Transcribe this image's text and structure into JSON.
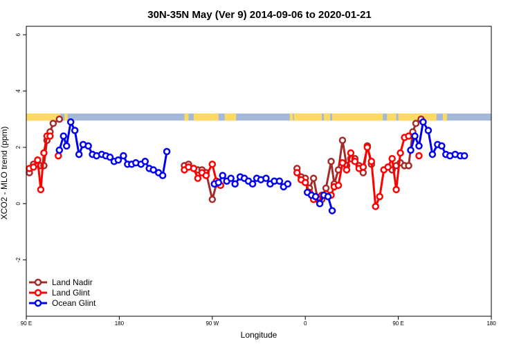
{
  "chart_data": {
    "type": "line",
    "title": "30N-35N May (Ver 9)   2014-09-06 to 2020-01-21",
    "xlabel": "Longitude",
    "ylabel": "XCO2 - MLO trend (ppm)",
    "xlim": [
      90,
      540
    ],
    "ylim": [
      -4,
      6.3
    ],
    "x_ticks": [
      {
        "value": 90,
        "label": "90 E"
      },
      {
        "value": 180,
        "label": "180"
      },
      {
        "value": 270,
        "label": "90 W"
      },
      {
        "value": 360,
        "label": "0"
      },
      {
        "value": 450,
        "label": "90 E"
      },
      {
        "value": 540,
        "label": "180"
      }
    ],
    "y_ticks": [
      {
        "value": -2,
        "label": "-2"
      },
      {
        "value": 0,
        "label": "0"
      },
      {
        "value": 2,
        "label": "2"
      },
      {
        "value": 4,
        "label": "4"
      },
      {
        "value": 6,
        "label": "6"
      }
    ],
    "grid": false,
    "legend_position": "bottom-left",
    "surface_band": {
      "y_range": [
        2.95,
        3.2
      ],
      "land_color": "#FFD966",
      "ocean_color": "#A4B8D8",
      "land_segments": [
        [
          90,
          123
        ],
        [
          127,
          130
        ],
        [
          243,
          247
        ],
        [
          252,
          276
        ],
        [
          282,
          293
        ],
        [
          345,
          348
        ],
        [
          349,
          376
        ],
        [
          378,
          384
        ],
        [
          386,
          435
        ],
        [
          439,
          448
        ],
        [
          450,
          487
        ],
        [
          493,
          497
        ]
      ]
    },
    "series": [
      {
        "name": "Land Nadir",
        "color": "#A52A2A",
        "segments": [
          [
            [
              93,
              1.1
            ],
            [
              97,
              1.4
            ],
            [
              101,
              1.4
            ],
            [
              104,
              1.35
            ],
            [
              107,
              1.35
            ],
            [
              110,
              2.25
            ],
            [
              113,
              2.55
            ],
            [
              116,
              2.85
            ],
            [
              122,
              3.0
            ]
          ],
          [
            [
              243,
              1.35
            ],
            [
              247,
              1.4
            ],
            [
              252,
              1.25
            ],
            [
              256,
              1.2
            ],
            [
              260,
              1.2
            ],
            [
              264,
              1.1
            ],
            [
              270,
              0.15
            ],
            [
              274,
              0.7
            ]
          ],
          [
            [
              352,
              1.25
            ],
            [
              356,
              0.95
            ],
            [
              360,
              0.9
            ],
            [
              364,
              0.55
            ],
            [
              368,
              0.9
            ],
            [
              372,
              0.15
            ],
            [
              376,
              0.15
            ],
            [
              380,
              0.55
            ],
            [
              385,
              1.5
            ],
            [
              388,
              0.7
            ],
            [
              392,
              1.2
            ],
            [
              396,
              2.25
            ],
            [
              400,
              1.35
            ],
            [
              404,
              1.6
            ],
            [
              408,
              1.6
            ],
            [
              412,
              1.35
            ],
            [
              416,
              1.1
            ],
            [
              420,
              2.05
            ],
            [
              424,
              1.4
            ]
          ],
          [
            [
              444,
              1.2
            ],
            [
              448,
              1.35
            ],
            [
              452,
              1.45
            ],
            [
              456,
              1.35
            ],
            [
              460,
              1.35
            ],
            [
              464,
              2.55
            ],
            [
              467,
              2.85
            ],
            [
              472,
              3.0
            ]
          ]
        ]
      },
      {
        "name": "Land Glint",
        "color": "#FF0000",
        "segments": [
          [
            [
              93,
              1.25
            ],
            [
              97,
              1.3
            ],
            [
              101,
              1.55
            ],
            [
              104,
              0.5
            ],
            [
              107,
              1.8
            ],
            [
              110,
              2.4
            ],
            [
              113,
              2.4
            ]
          ],
          [
            [
              121,
              1.7
            ]
          ],
          [
            [
              243,
              1.2
            ],
            [
              247,
              1.3
            ],
            [
              252,
              1.25
            ],
            [
              256,
              0.9
            ],
            [
              260,
              1.1
            ],
            [
              264,
              1.0
            ],
            [
              270,
              1.4
            ],
            [
              274,
              0.8
            ],
            [
              278,
              0.65
            ]
          ],
          [
            [
              352,
              1.1
            ],
            [
              356,
              0.85
            ],
            [
              360,
              0.75
            ],
            [
              364,
              0.4
            ],
            [
              368,
              0.15
            ],
            [
              372,
              0.2
            ],
            [
              376,
              0.3
            ],
            [
              380,
              0.35
            ],
            [
              385,
              0.3
            ],
            [
              388,
              0.6
            ],
            [
              392,
              0.65
            ],
            [
              396,
              1.45
            ],
            [
              400,
              1.2
            ],
            [
              404,
              1.8
            ],
            [
              408,
              1.5
            ],
            [
              412,
              1.25
            ],
            [
              416,
              1.3
            ],
            [
              420,
              2.0
            ],
            [
              424,
              1.5
            ],
            [
              428,
              -0.1
            ],
            [
              432,
              0.25
            ],
            [
              436,
              1.2
            ],
            [
              440,
              1.3
            ],
            [
              444,
              1.6
            ],
            [
              448,
              0.5
            ],
            [
              452,
              1.8
            ],
            [
              456,
              2.35
            ],
            [
              460,
              2.4
            ]
          ],
          [
            [
              470,
              1.7
            ]
          ]
        ]
      },
      {
        "name": "Ocean Glint",
        "color": "#0000EE",
        "segments": [
          [
            [
              122,
              1.9
            ],
            [
              126,
              2.4
            ],
            [
              129,
              2.05
            ],
            [
              133,
              2.9
            ],
            [
              137,
              2.6
            ],
            [
              141,
              1.75
            ],
            [
              145,
              2.1
            ],
            [
              150,
              2.05
            ],
            [
              154,
              1.75
            ],
            [
              158,
              1.7
            ],
            [
              163,
              1.75
            ],
            [
              167,
              1.7
            ],
            [
              171,
              1.65
            ],
            [
              175,
              1.5
            ],
            [
              179,
              1.55
            ],
            [
              184,
              1.7
            ],
            [
              188,
              1.4
            ],
            [
              192,
              1.4
            ],
            [
              196,
              1.45
            ],
            [
              201,
              1.4
            ],
            [
              205,
              1.5
            ],
            [
              209,
              1.25
            ],
            [
              213,
              1.2
            ],
            [
              218,
              1.1
            ],
            [
              222,
              1.0
            ],
            [
              226,
              1.85
            ]
          ],
          [
            [
              272,
              0.7
            ],
            [
              276,
              0.75
            ],
            [
              280,
              1.0
            ],
            [
              284,
              0.8
            ],
            [
              288,
              0.9
            ],
            [
              292,
              0.7
            ],
            [
              297,
              0.95
            ],
            [
              301,
              0.9
            ],
            [
              305,
              0.8
            ],
            [
              309,
              0.7
            ],
            [
              313,
              0.9
            ],
            [
              317,
              0.85
            ],
            [
              322,
              0.9
            ],
            [
              326,
              0.7
            ],
            [
              330,
              0.8
            ],
            [
              335,
              0.8
            ],
            [
              339,
              0.6
            ],
            [
              343,
              0.7
            ]
          ],
          [
            [
              362,
              0.4
            ],
            [
              366,
              0.3
            ],
            [
              370,
              0.25
            ],
            [
              374,
              0.0
            ],
            [
              378,
              0.3
            ],
            [
              382,
              0.25
            ],
            [
              386,
              -0.25
            ]
          ],
          [
            [
              462,
              1.9
            ],
            [
              466,
              2.4
            ],
            [
              470,
              2.05
            ],
            [
              474,
              2.9
            ],
            [
              479,
              2.6
            ],
            [
              483,
              1.75
            ],
            [
              488,
              2.1
            ],
            [
              492,
              2.05
            ],
            [
              496,
              1.75
            ],
            [
              500,
              1.7
            ],
            [
              505,
              1.75
            ],
            [
              510,
              1.7
            ],
            [
              514,
              1.7
            ]
          ]
        ]
      }
    ]
  }
}
